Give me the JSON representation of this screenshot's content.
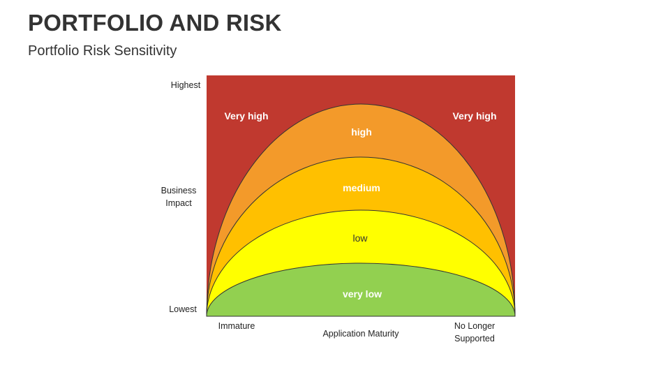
{
  "header": {
    "title": "PORTFOLIO AND RISK",
    "subtitle": "Portfolio Risk Sensitivity"
  },
  "y_axis": {
    "top_label": "Highest",
    "mid_label_line1": "Business",
    "mid_label_line2": "Impact",
    "bottom_label": "Lowest"
  },
  "x_axis": {
    "left_label": "Immature",
    "mid_label": "Application Maturity",
    "right_label_line1": "No Longer",
    "right_label_line2": "Supported"
  },
  "zones": {
    "very_high_left": "Very high",
    "very_high_right": "Very high",
    "high": "high",
    "medium": "medium",
    "low": "low",
    "very_low": "very low"
  },
  "colors": {
    "very_high": "#c0392f",
    "high": "#f39a2a",
    "medium": "#ffc000",
    "low": "#ffff00",
    "very_low": "#92d050",
    "outline": "#333333"
  }
}
